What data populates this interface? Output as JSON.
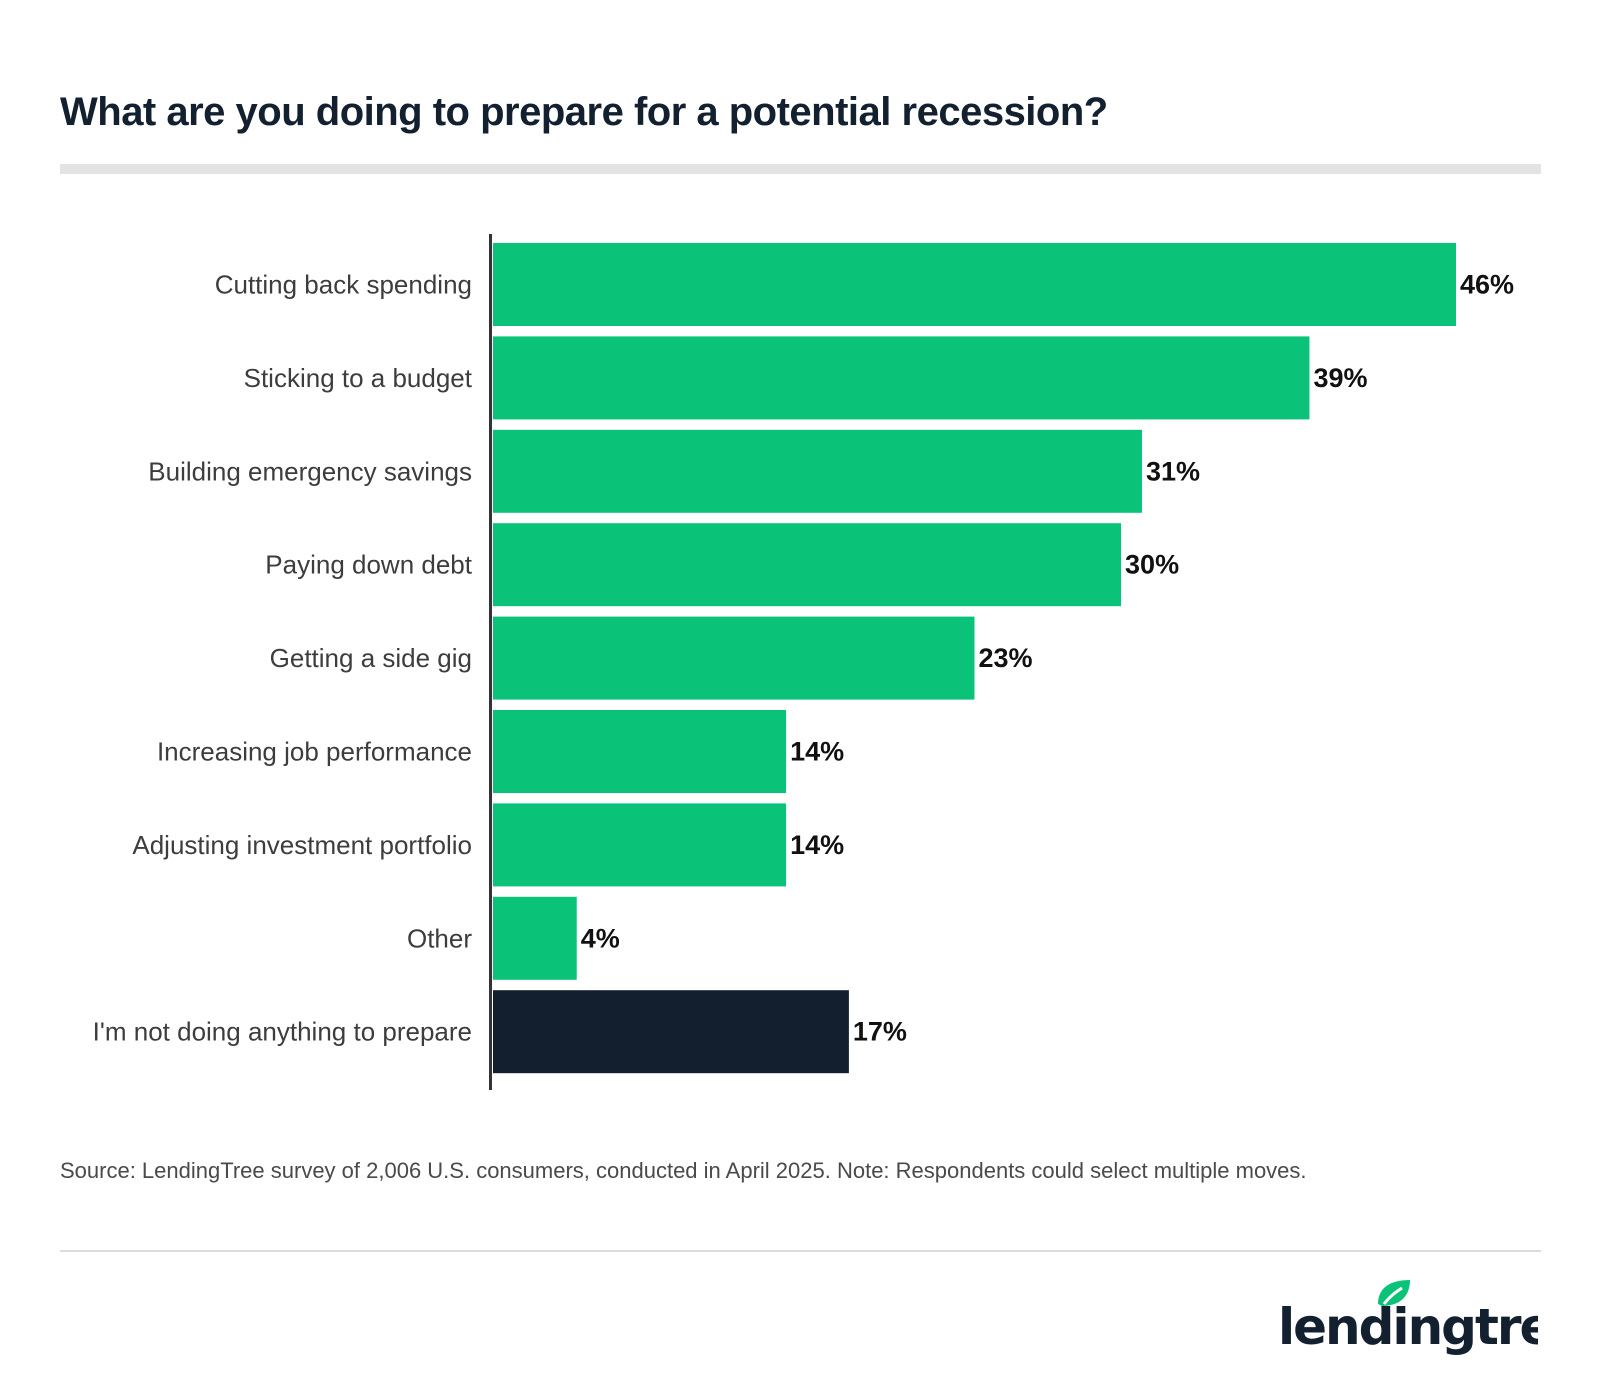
{
  "title": "What are you doing to prepare for a potential recession?",
  "source": "Source: LendingTree survey of 2,006 U.S. consumers, conducted in April 2025. Note: Respondents could select multiple moves.",
  "logo_text": "lendingtree",
  "colors": {
    "primary": "#0bc279",
    "highlight": "#131f2e",
    "label": "#3d3d3d",
    "value": "#111111"
  },
  "chart_data": {
    "type": "bar",
    "orientation": "horizontal",
    "categories": [
      "Cutting back spending",
      "Sticking to a budget",
      "Building emergency savings",
      "Paying down debt",
      "Getting a side gig",
      "Increasing job performance",
      "Adjusting investment portfolio",
      "Other",
      "I'm not doing anything to prepare"
    ],
    "values": [
      46,
      39,
      31,
      30,
      23,
      14,
      14,
      4,
      17
    ],
    "value_labels": [
      "46%",
      "39%",
      "31%",
      "30%",
      "23%",
      "14%",
      "14%",
      "4%",
      "17%"
    ],
    "bar_colors": [
      "#0bc279",
      "#0bc279",
      "#0bc279",
      "#0bc279",
      "#0bc279",
      "#0bc279",
      "#0bc279",
      "#0bc279",
      "#131f2e"
    ],
    "xlim": [
      0,
      46
    ],
    "grid": false,
    "legend": "none"
  }
}
